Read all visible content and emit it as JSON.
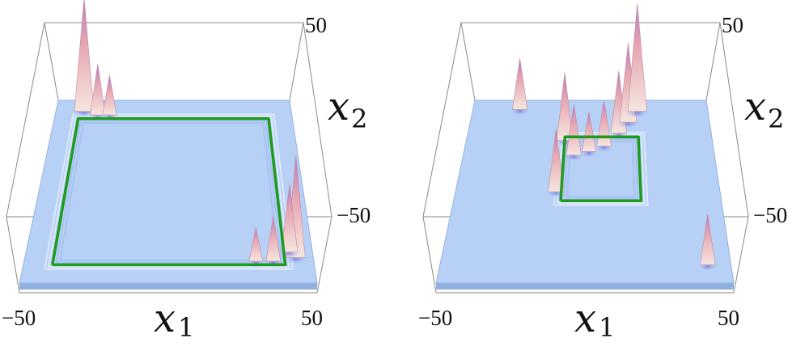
{
  "chart_data": [
    {
      "type": "surface",
      "xlabel": "x",
      "xlabel_sub": "1",
      "ylabel": "x",
      "ylabel_sub": "2",
      "xlim": [
        -50,
        50
      ],
      "ylim": [
        -50,
        50
      ],
      "x_ticks": [
        "−50",
        "50"
      ],
      "y_ticks": [
        "50",
        "−50"
      ],
      "path": [
        [
          -40,
          -40
        ],
        [
          -40,
          40
        ],
        [
          40,
          40
        ],
        [
          40,
          -40
        ],
        [
          -40,
          -40
        ]
      ],
      "peaks": [
        [
          -38,
          44,
          1.0
        ],
        [
          -32,
          42,
          0.45
        ],
        [
          -27,
          42,
          0.35
        ],
        [
          44,
          -36,
          0.9
        ],
        [
          42,
          -33,
          0.6
        ],
        [
          36,
          -38,
          0.4
        ],
        [
          30,
          -38,
          0.3
        ]
      ]
    },
    {
      "type": "surface",
      "xlabel": "x",
      "xlabel_sub": "1",
      "ylabel": "x",
      "ylabel_sub": "2",
      "xlim": [
        -50,
        50
      ],
      "ylim": [
        -50,
        50
      ],
      "x_ticks": [
        "−50",
        "50"
      ],
      "y_ticks": [
        "50",
        "−50"
      ],
      "path": [
        [
          -10,
          -5
        ],
        [
          -10,
          30
        ],
        [
          20,
          30
        ],
        [
          20,
          -5
        ],
        [
          -10,
          -5
        ]
      ],
      "peaks": [
        [
          -30,
          45,
          0.45
        ],
        [
          -10,
          28,
          0.6
        ],
        [
          -6,
          20,
          0.45
        ],
        [
          0,
          22,
          0.35
        ],
        [
          6,
          25,
          0.4
        ],
        [
          12,
          32,
          0.55
        ],
        [
          16,
          38,
          0.7
        ],
        [
          20,
          44,
          0.95
        ],
        [
          -12,
          0,
          0.55
        ],
        [
          42,
          -40,
          0.45
        ]
      ]
    }
  ],
  "colors": {
    "floor": "#b7d0f6",
    "floor_edge": "#8fb0e0",
    "path": "#1e9b1e",
    "peak_top": "#c9809a",
    "peak_mid": "#e7b9b0",
    "box": "#888888"
  }
}
